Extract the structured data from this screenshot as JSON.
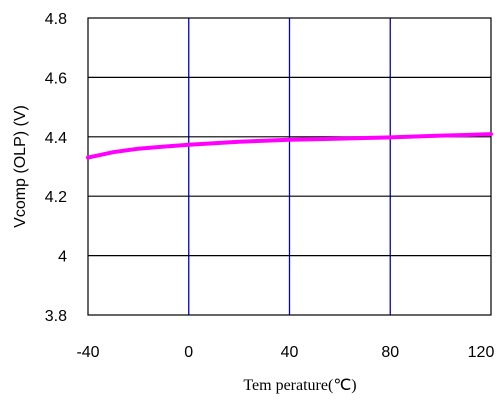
{
  "chart_data": {
    "type": "line",
    "xlabel": "Tem perature(℃)",
    "ylabel": "Vcomp (OLP) (V)",
    "xlim": [
      -40,
      120
    ],
    "ylim": [
      3.8,
      4.8
    ],
    "x_ticks": [
      -40,
      0,
      40,
      80,
      120
    ],
    "y_ticks": [
      3.8,
      4,
      4.2,
      4.4,
      4.6,
      4.8
    ],
    "x_tick_labels": [
      "-40",
      "0",
      "40",
      "80",
      "120"
    ],
    "y_tick_labels": [
      "3.8",
      "4",
      "4.2",
      "4.4",
      "4.6",
      "4.8"
    ],
    "grid": true,
    "series": [
      {
        "color": "#ff00ff",
        "x": [
          -40,
          -30,
          -20,
          -10,
          0,
          10,
          20,
          30,
          40,
          50,
          60,
          70,
          80,
          90,
          100,
          110,
          120
        ],
        "y": [
          4.33,
          4.348,
          4.36,
          4.367,
          4.373,
          4.378,
          4.383,
          4.387,
          4.39,
          4.392,
          4.394,
          4.396,
          4.398,
          4.401,
          4.404,
          4.406,
          4.409
        ]
      }
    ],
    "colors": {
      "vertical_grid": "#0000cc",
      "horizontal_grid": "#000000",
      "background": "#ffffff"
    }
  }
}
